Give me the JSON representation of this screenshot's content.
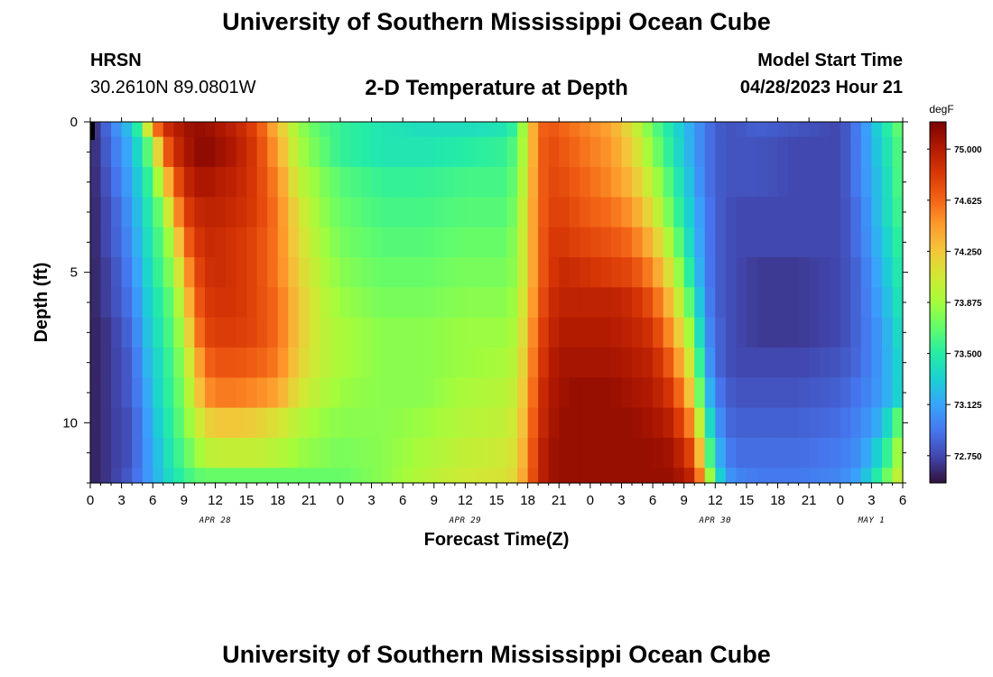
{
  "header": {
    "title_top": "University of Southern Mississippi Ocean Cube",
    "title_bottom": "University of Southern Mississippi Ocean Cube",
    "station_name": "HRSN",
    "coordinates": "30.2610N  89.0801W",
    "plot_title": "2-D Temperature at Depth",
    "model_start_label": "Model Start Time",
    "model_start_value": "04/28/2023 Hour 21"
  },
  "chart_data": {
    "type": "heatmap",
    "title": "2-D Temperature at Depth",
    "xlabel": "Forecast Time(Z)",
    "ylabel": "Depth (ft)",
    "x_start_hour": 0,
    "x_end_hour": 78,
    "x_ticks": [
      {
        "hour": 0,
        "label": "0"
      },
      {
        "hour": 3,
        "label": "3"
      },
      {
        "hour": 6,
        "label": "6"
      },
      {
        "hour": 9,
        "label": "9"
      },
      {
        "hour": 12,
        "label": "12"
      },
      {
        "hour": 15,
        "label": "15"
      },
      {
        "hour": 18,
        "label": "18"
      },
      {
        "hour": 21,
        "label": "21"
      },
      {
        "hour": 24,
        "label": "0"
      },
      {
        "hour": 27,
        "label": "3"
      },
      {
        "hour": 30,
        "label": "6"
      },
      {
        "hour": 33,
        "label": "9"
      },
      {
        "hour": 36,
        "label": "12"
      },
      {
        "hour": 39,
        "label": "15"
      },
      {
        "hour": 42,
        "label": "18"
      },
      {
        "hour": 45,
        "label": "21"
      },
      {
        "hour": 48,
        "label": "0"
      },
      {
        "hour": 51,
        "label": "3"
      },
      {
        "hour": 54,
        "label": "6"
      },
      {
        "hour": 57,
        "label": "9"
      },
      {
        "hour": 60,
        "label": "12"
      },
      {
        "hour": 63,
        "label": "15"
      },
      {
        "hour": 66,
        "label": "18"
      },
      {
        "hour": 69,
        "label": "21"
      },
      {
        "hour": 72,
        "label": "0"
      },
      {
        "hour": 75,
        "label": "3"
      },
      {
        "hour": 78,
        "label": "6"
      }
    ],
    "date_labels": [
      {
        "hour": 12,
        "label": "APR 28"
      },
      {
        "hour": 36,
        "label": "APR 29"
      },
      {
        "hour": 60,
        "label": "APR 30"
      },
      {
        "hour": 75,
        "label": "MAY 1"
      }
    ],
    "y_range": [
      0,
      12
    ],
    "y_ticks": [
      0,
      5,
      10
    ],
    "colorbar": {
      "unit": "degF",
      "range": [
        72.55,
        75.2
      ],
      "ticks": [
        "75.000",
        "74.625",
        "74.250",
        "73.875",
        "73.500",
        "73.125",
        "72.750"
      ],
      "colors": [
        "#30123b",
        "#4145ab",
        "#4675ed",
        "#39a2fc",
        "#1bcfd4",
        "#24eca6",
        "#61fc6c",
        "#a4fc3b",
        "#d1e834",
        "#f3c63a",
        "#fe9b2d",
        "#f36315",
        "#d93806",
        "#b11901",
        "#7a0402"
      ]
    },
    "time_step_hours": 1,
    "depth_levels_ft": [
      0,
      1,
      2,
      3,
      4,
      5,
      6,
      7,
      8,
      9,
      10,
      11,
      12
    ],
    "series_note": "Values in degF by depth level (rows, 0 to 12 ft); columns are forecast hours 0..78 at 1-hour spacing (piecewise estimates from figure).",
    "keyframe_hours": [
      0,
      2,
      4,
      5,
      6,
      7,
      8,
      9,
      10,
      11,
      12,
      14,
      16,
      18,
      20,
      22,
      24,
      28,
      32,
      36,
      40,
      41,
      42,
      43,
      44,
      45,
      46,
      48,
      50,
      52,
      54,
      56,
      58,
      59,
      60,
      61,
      62,
      64,
      68,
      72,
      74,
      76,
      78
    ],
    "keyframe_values": [
      [
        72.6,
        72.95,
        73.3,
        73.7,
        74.4,
        74.85,
        74.95,
        75.05,
        75.1,
        75.1,
        75.05,
        74.95,
        74.75,
        74.3,
        73.85,
        73.65,
        73.55,
        73.45,
        73.4,
        73.4,
        73.45,
        73.6,
        74.1,
        74.6,
        74.7,
        74.65,
        74.6,
        74.5,
        74.4,
        74.1,
        73.7,
        73.4,
        73.1,
        72.95,
        72.85,
        72.8,
        72.8,
        72.85,
        72.8,
        72.75,
        73.0,
        73.4,
        73.75
      ],
      [
        72.6,
        72.9,
        73.2,
        73.5,
        73.8,
        74.55,
        74.85,
        75.0,
        75.1,
        75.15,
        75.1,
        75.0,
        74.8,
        74.4,
        73.9,
        73.7,
        73.55,
        73.45,
        73.45,
        73.5,
        73.55,
        73.7,
        74.1,
        74.6,
        74.75,
        74.7,
        74.65,
        74.55,
        74.45,
        74.2,
        73.8,
        73.45,
        73.1,
        72.95,
        72.85,
        72.8,
        72.8,
        72.8,
        72.75,
        72.75,
        73.0,
        73.35,
        73.7
      ],
      [
        72.6,
        72.85,
        73.15,
        73.4,
        73.65,
        74.1,
        74.6,
        74.9,
        75.0,
        75.05,
        75.0,
        74.95,
        74.8,
        74.5,
        74.0,
        73.8,
        73.65,
        73.55,
        73.55,
        73.6,
        73.6,
        73.75,
        74.15,
        74.6,
        74.75,
        74.75,
        74.7,
        74.6,
        74.5,
        74.3,
        73.95,
        73.55,
        73.15,
        72.95,
        72.85,
        72.8,
        72.8,
        72.8,
        72.75,
        72.75,
        73.0,
        73.3,
        73.7
      ],
      [
        72.6,
        72.8,
        73.1,
        73.35,
        73.55,
        73.8,
        74.3,
        74.75,
        74.9,
        74.95,
        74.95,
        74.9,
        74.8,
        74.55,
        74.1,
        73.85,
        73.7,
        73.6,
        73.6,
        73.65,
        73.65,
        73.8,
        74.2,
        74.6,
        74.75,
        74.8,
        74.75,
        74.65,
        74.6,
        74.45,
        74.1,
        73.65,
        73.2,
        73.0,
        72.85,
        72.8,
        72.75,
        72.75,
        72.75,
        72.75,
        72.95,
        73.3,
        73.65
      ],
      [
        72.6,
        72.8,
        73.05,
        73.3,
        73.5,
        73.7,
        74.0,
        74.55,
        74.8,
        74.9,
        74.9,
        74.85,
        74.75,
        74.55,
        74.15,
        73.9,
        73.75,
        73.65,
        73.65,
        73.7,
        73.7,
        73.85,
        74.2,
        74.6,
        74.8,
        74.85,
        74.8,
        74.75,
        74.7,
        74.6,
        74.3,
        73.8,
        73.25,
        73.0,
        72.85,
        72.8,
        72.75,
        72.75,
        72.75,
        72.75,
        72.95,
        73.25,
        73.6
      ],
      [
        72.6,
        72.75,
        73.0,
        73.25,
        73.45,
        73.65,
        73.85,
        74.3,
        74.7,
        74.85,
        74.9,
        74.85,
        74.75,
        74.55,
        74.2,
        73.95,
        73.8,
        73.7,
        73.7,
        73.75,
        73.75,
        73.85,
        74.2,
        74.6,
        74.8,
        74.9,
        74.9,
        74.85,
        74.8,
        74.75,
        74.5,
        74.0,
        73.35,
        73.0,
        72.85,
        72.8,
        72.75,
        72.7,
        72.7,
        72.75,
        72.9,
        73.2,
        73.55
      ],
      [
        72.6,
        72.75,
        72.95,
        73.2,
        73.4,
        73.55,
        73.75,
        74.1,
        74.6,
        74.8,
        74.85,
        74.85,
        74.75,
        74.6,
        74.25,
        74.0,
        73.85,
        73.75,
        73.75,
        73.8,
        73.8,
        73.9,
        74.25,
        74.65,
        74.85,
        74.95,
        74.95,
        74.95,
        74.95,
        74.9,
        74.7,
        74.2,
        73.5,
        73.05,
        72.85,
        72.8,
        72.75,
        72.7,
        72.7,
        72.75,
        72.9,
        73.15,
        73.5
      ],
      [
        72.6,
        72.7,
        72.9,
        73.15,
        73.35,
        73.5,
        73.7,
        73.95,
        74.45,
        74.75,
        74.8,
        74.8,
        74.75,
        74.6,
        74.25,
        74.0,
        73.9,
        73.8,
        73.8,
        73.85,
        73.85,
        73.95,
        74.3,
        74.7,
        74.9,
        75.0,
        75.0,
        75.0,
        75.0,
        74.95,
        74.85,
        74.4,
        73.7,
        73.1,
        72.9,
        72.8,
        72.75,
        72.7,
        72.7,
        72.75,
        72.9,
        73.1,
        73.45
      ],
      [
        72.6,
        72.7,
        72.85,
        73.1,
        73.3,
        73.45,
        73.65,
        73.85,
        74.25,
        74.6,
        74.7,
        74.7,
        74.65,
        74.55,
        74.2,
        74.0,
        73.9,
        73.8,
        73.8,
        73.85,
        73.9,
        74.0,
        74.35,
        74.75,
        74.95,
        75.05,
        75.05,
        75.05,
        75.05,
        75.0,
        74.95,
        74.6,
        73.9,
        73.2,
        72.9,
        72.8,
        72.75,
        72.75,
        72.75,
        72.8,
        72.9,
        73.1,
        73.4
      ],
      [
        72.6,
        72.7,
        72.85,
        73.05,
        73.25,
        73.45,
        73.6,
        73.8,
        74.1,
        74.45,
        74.55,
        74.55,
        74.5,
        74.4,
        74.1,
        73.95,
        73.85,
        73.8,
        73.8,
        73.9,
        73.95,
        74.05,
        74.4,
        74.8,
        75.0,
        75.05,
        75.1,
        75.1,
        75.1,
        75.05,
        75.0,
        74.8,
        74.1,
        73.35,
        73.0,
        72.85,
        72.8,
        72.8,
        72.8,
        72.85,
        72.95,
        73.1,
        73.4
      ],
      [
        72.6,
        72.7,
        72.8,
        73.0,
        73.2,
        73.4,
        73.55,
        73.75,
        73.95,
        74.15,
        74.25,
        74.25,
        74.2,
        74.1,
        73.95,
        73.85,
        73.8,
        73.8,
        73.85,
        73.95,
        74.0,
        74.1,
        74.45,
        74.85,
        75.0,
        75.1,
        75.1,
        75.1,
        75.1,
        75.1,
        75.05,
        74.95,
        74.4,
        73.6,
        73.15,
        72.9,
        72.85,
        72.85,
        72.85,
        72.9,
        73.0,
        73.2,
        73.8
      ],
      [
        72.6,
        72.7,
        72.8,
        73.0,
        73.15,
        73.35,
        73.5,
        73.65,
        73.8,
        73.95,
        74.0,
        74.0,
        74.0,
        73.95,
        73.85,
        73.8,
        73.75,
        73.8,
        73.9,
        74.0,
        74.05,
        74.15,
        74.5,
        74.9,
        75.05,
        75.1,
        75.1,
        75.1,
        75.1,
        75.1,
        75.1,
        75.05,
        74.7,
        73.9,
        73.3,
        73.0,
        72.9,
        72.9,
        72.9,
        72.95,
        73.05,
        73.4,
        74.0
      ],
      [
        72.6,
        72.7,
        72.85,
        73.0,
        73.15,
        73.3,
        73.45,
        73.55,
        73.65,
        73.7,
        73.7,
        73.7,
        73.7,
        73.7,
        73.7,
        73.7,
        73.7,
        73.8,
        73.95,
        74.05,
        74.1,
        74.2,
        74.55,
        74.9,
        75.05,
        75.1,
        75.1,
        75.1,
        75.1,
        75.1,
        75.1,
        75.1,
        74.9,
        74.2,
        73.5,
        73.1,
        73.0,
        72.95,
        72.95,
        73.0,
        73.15,
        73.6,
        74.1
      ]
    ]
  }
}
